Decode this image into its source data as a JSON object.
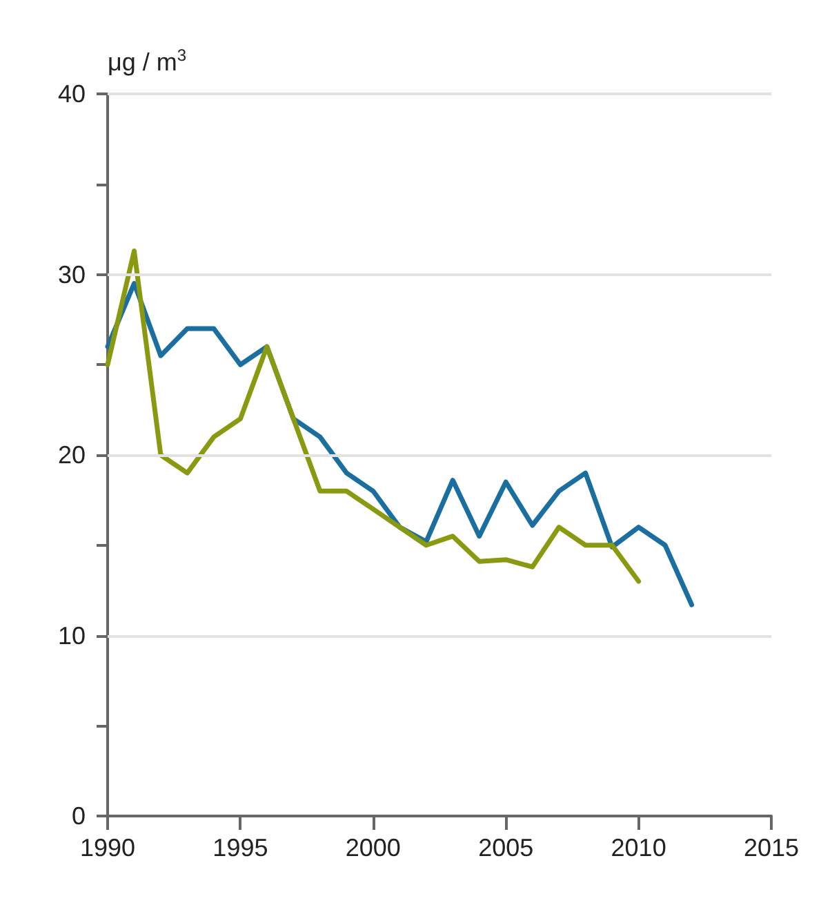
{
  "chart_data": {
    "type": "line",
    "ylabel": "μg / m$^{3}$",
    "x": [
      1990,
      1991,
      1992,
      1993,
      1994,
      1995,
      1996,
      1997,
      1998,
      1999,
      2000,
      2001,
      2002,
      2003,
      2004,
      2005,
      2006,
      2007,
      2008,
      2009,
      2010,
      2011,
      2012
    ],
    "series": [
      {
        "color": "#1a6fa0",
        "values": [
          26,
          29.5,
          25.5,
          27,
          27,
          25,
          26,
          22,
          21,
          19,
          18,
          16,
          15.2,
          18.6,
          15.5,
          18.5,
          16.1,
          18,
          19,
          14.9,
          16,
          15,
          11.7
        ]
      },
      {
        "color": "#8a9a10",
        "values": [
          25,
          31.3,
          20,
          19,
          21,
          22,
          26,
          22,
          18,
          18,
          17,
          16,
          15,
          15.5,
          14.1,
          14.2,
          13.8,
          16,
          15,
          15,
          13,
          null,
          null
        ]
      }
    ],
    "xlim": [
      1990,
      2015
    ],
    "xticks": [
      1990,
      1995,
      2000,
      2005,
      2010,
      2015
    ],
    "ylim": [
      0,
      40
    ],
    "yticks": [
      0,
      {
        "value": 5,
        "label": null
      },
      10,
      {
        "value": 15,
        "label": null
      },
      20,
      {
        "value": 25,
        "label": null
      },
      30,
      {
        "value": 35,
        "label": null
      },
      40
    ],
    "grid": "y",
    "marker": "none",
    "line_style": "solid"
  }
}
